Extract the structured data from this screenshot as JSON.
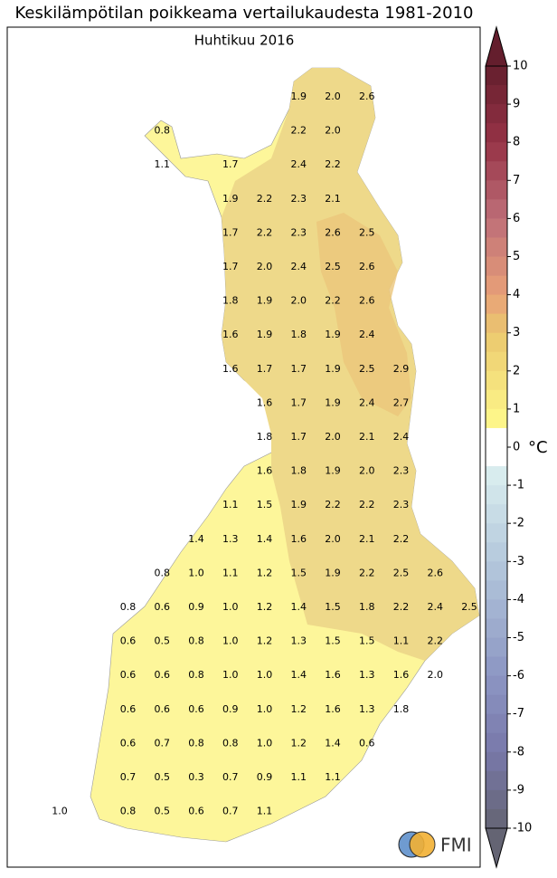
{
  "header": {
    "title": "Keskilämpötilan poikkeama vertailukaudesta 1981-2010",
    "subtitle": "Huhtikuu 2016"
  },
  "map": {
    "grid": [
      [
        null,
        null,
        null,
        null,
        null,
        null,
        null,
        "1.9",
        "2.0",
        "2.6",
        null,
        null,
        null
      ],
      [
        null,
        null,
        null,
        "0.8",
        null,
        null,
        null,
        "2.2",
        "2.0",
        null,
        null,
        null,
        null
      ],
      [
        null,
        null,
        null,
        "1.1",
        null,
        "1.7",
        null,
        "2.4",
        "2.2",
        null,
        null,
        null,
        null
      ],
      [
        null,
        null,
        null,
        null,
        null,
        "1.9",
        "2.2",
        "2.3",
        "2.1",
        null,
        null,
        null,
        null
      ],
      [
        null,
        null,
        null,
        null,
        null,
        "1.7",
        "2.2",
        "2.3",
        "2.6",
        "2.5",
        null,
        null,
        null
      ],
      [
        null,
        null,
        null,
        null,
        null,
        "1.7",
        "2.0",
        "2.4",
        "2.5",
        "2.6",
        null,
        null,
        null
      ],
      [
        null,
        null,
        null,
        null,
        null,
        "1.8",
        "1.9",
        "2.0",
        "2.2",
        "2.6",
        null,
        null,
        null
      ],
      [
        null,
        null,
        null,
        null,
        null,
        "1.6",
        "1.9",
        "1.8",
        "1.9",
        "2.4",
        null,
        null,
        null
      ],
      [
        null,
        null,
        null,
        null,
        null,
        "1.6",
        "1.7",
        "1.7",
        "1.9",
        "2.5",
        "2.9",
        null,
        null
      ],
      [
        null,
        null,
        null,
        null,
        null,
        null,
        "1.6",
        "1.7",
        "1.9",
        "2.4",
        "2.7",
        null,
        null
      ],
      [
        null,
        null,
        null,
        null,
        null,
        null,
        "1.8",
        "1.7",
        "2.0",
        "2.1",
        "2.4",
        null,
        null
      ],
      [
        null,
        null,
        null,
        null,
        null,
        null,
        "1.6",
        "1.8",
        "1.9",
        "2.0",
        "2.3",
        null,
        null
      ],
      [
        null,
        null,
        null,
        null,
        null,
        "1.1",
        "1.5",
        "1.9",
        "2.2",
        "2.2",
        "2.3",
        null,
        null
      ],
      [
        null,
        null,
        null,
        null,
        "1.4",
        "1.3",
        "1.4",
        "1.6",
        "2.0",
        "2.1",
        "2.2",
        null,
        null
      ],
      [
        null,
        null,
        null,
        "0.8",
        "1.0",
        "1.1",
        "1.2",
        "1.5",
        "1.9",
        "2.2",
        "2.5",
        "2.6",
        null
      ],
      [
        null,
        null,
        "0.8",
        "0.6",
        "0.9",
        "1.0",
        "1.2",
        "1.4",
        "1.5",
        "1.8",
        "2.2",
        "2.4",
        "2.5"
      ],
      [
        null,
        null,
        "0.6",
        "0.5",
        "0.8",
        "1.0",
        "1.2",
        "1.3",
        "1.5",
        "1.5",
        "1.1",
        "2.2",
        null
      ],
      [
        null,
        null,
        "0.6",
        "0.6",
        "0.8",
        "1.0",
        "1.0",
        "1.4",
        "1.6",
        "1.3",
        "1.6",
        "2.0",
        null
      ],
      [
        null,
        null,
        "0.6",
        "0.6",
        "0.6",
        "0.9",
        "1.0",
        "1.2",
        "1.6",
        "1.3",
        "1.8",
        null,
        null
      ],
      [
        null,
        null,
        "0.6",
        "0.7",
        "0.8",
        "0.8",
        "1.0",
        "1.2",
        "1.4",
        "0.6",
        null,
        null,
        null
      ],
      [
        null,
        null,
        "0.7",
        "0.5",
        "0.3",
        "0.7",
        "0.9",
        "1.1",
        "1.1",
        null,
        null,
        null,
        null
      ],
      [
        "1.0",
        null,
        "0.8",
        "0.5",
        "0.6",
        "0.7",
        "1.1",
        null,
        null,
        null,
        null,
        null,
        null
      ]
    ]
  },
  "colorbar": {
    "ticks": [
      10,
      9,
      8,
      7,
      6,
      5,
      4,
      3,
      2,
      1,
      0,
      -1,
      -2,
      -3,
      -4,
      -5,
      -6,
      -7,
      -8,
      -9,
      -10
    ],
    "unit": "°C"
  },
  "logo": {
    "text": "FMI"
  }
}
